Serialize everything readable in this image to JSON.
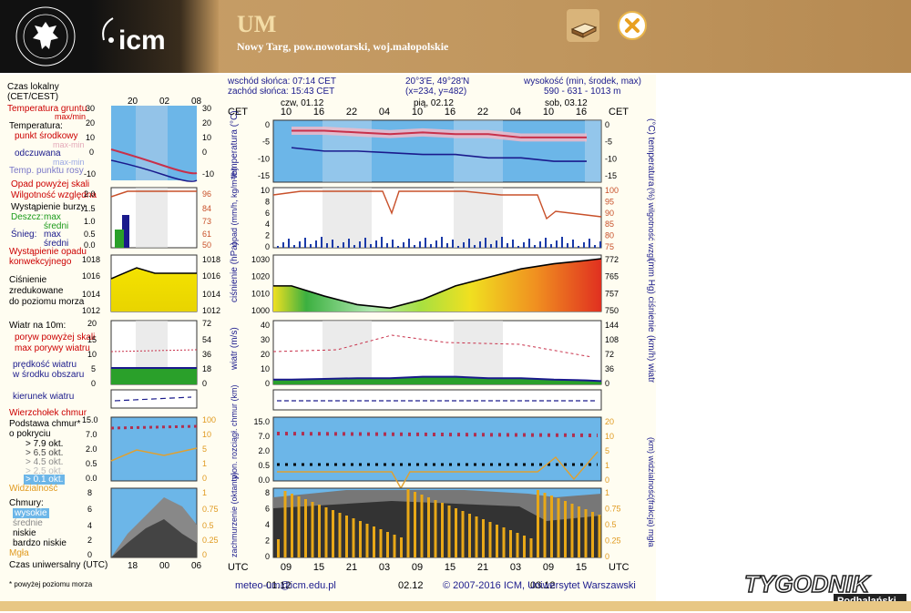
{
  "header": {
    "title": "UM",
    "location": "Nowy Targ, pow.nowotarski, woj.małopolskie",
    "uw_logo_text": "UNIWERSYTET WARSZAWSKI",
    "icm_logo_text": "icm",
    "save_icon": "save-icon",
    "close_icon": "close-icon"
  },
  "info": {
    "sunrise": "wschód słońca: 07:14 CET",
    "sunset": "zachód słońca: 15:43 CET",
    "coords": "20°3'E, 49°28'N",
    "grid": "(x=234, y=482)",
    "elevation_label": "wysokość (min, środek, max)",
    "elevation_values": "590 - 631 - 1013 m"
  },
  "legend": {
    "local_time": "Czas lokalny",
    "local_time_2": "(CET/CEST)",
    "soil_temp": "Temperatura gruntu",
    "soil_temp_2": "max/min",
    "temperature": "Temperatura:",
    "mid_point": "punkt środkowy",
    "max_min": "max-min",
    "perceived": "odczuwana",
    "max_min_2": "max-min",
    "dew_point": "Temp. punktu rosy",
    "precip_above": "Opad powyżej skali",
    "humidity": "Wilgotność względna",
    "storm": "Wystąpienie burzy",
    "rain": "Deszcz:",
    "rain_max": "max",
    "rain_avg": "średni",
    "snow": "Śnieg:",
    "snow_max": "max",
    "snow_avg": "średni",
    "convective": "Wystąpienie opadu",
    "convective_2": "konwekcyjnego",
    "pressure": "Ciśnienie",
    "pressure_2": "zredukowane",
    "pressure_3": "do poziomu morza",
    "wind_at": "Wiatr na 10m:",
    "gust_above": "poryw powyżej skali",
    "max_gust": "max porywy wiatru",
    "wind_speed": "prędkość wiatru",
    "wind_speed_2": "w środku obszaru",
    "wind_dir": "kierunek wiatru",
    "cloud_top": "Wierzchołek chmur",
    "cloud_base": "Podstawa chmur*",
    "cloud_base_2": "o pokryciu",
    "okt_79": "> 7.9 okt.",
    "okt_65": "> 6.5 okt.",
    "okt_45": "> 4.5 okt.",
    "okt_25": "> 2.5 okt.",
    "okt_01": "> 0.1 okt.",
    "visibility": "Widzialność",
    "clouds": "Chmury:",
    "high": "wysokie",
    "mid": "średnie",
    "low": "niskie",
    "very_low": "bardzo niskie",
    "fog": "Mgła",
    "utc_time": "Czas uniwersalny (UTC)",
    "footnote": "* powyżej poziomu morza"
  },
  "small_axes": {
    "hours_top": [
      "20",
      "02",
      "08"
    ],
    "hours_bottom": [
      "18",
      "00",
      "06"
    ],
    "temp_left": [
      "30",
      "20",
      "10",
      "0",
      "-10"
    ],
    "temp_right": [
      "30",
      "20",
      "10",
      "0",
      "-10"
    ],
    "precip_left": [
      "2.0",
      "1.5",
      "1.0",
      "0.5",
      "0.0"
    ],
    "precip_right": [
      "96",
      "84",
      "73",
      "61",
      "50"
    ],
    "press_left": [
      "1018",
      "1016",
      "1014",
      "1012"
    ],
    "press_right": [
      "1018",
      "1016",
      "1014",
      "1012"
    ],
    "wind_left": [
      "20",
      "15",
      "10",
      "5",
      "0"
    ],
    "wind_right": [
      "72",
      "54",
      "36",
      "18",
      "0"
    ],
    "cloudb_left": [
      "15.0",
      "7.0",
      "2.0",
      "0.5",
      "0.0"
    ],
    "cloudb_right": [
      "100",
      "10",
      "5",
      "1",
      "0"
    ],
    "cloud_left": [
      "8",
      "6",
      "4",
      "2",
      "0"
    ],
    "cloud_right": [
      "1",
      "0.75",
      "0.5",
      "0.25",
      "0"
    ]
  },
  "main_axes": {
    "cet": "CET",
    "utc": "UTC",
    "days_top": [
      "czw, 01.12",
      "pią, 02.12",
      "sob, 03.12"
    ],
    "hours_top": [
      "10",
      "16",
      "22",
      "04",
      "10",
      "16",
      "22",
      "04",
      "10",
      "16"
    ],
    "days_bottom": [
      "01.12",
      "02.12",
      "03.12"
    ],
    "hours_bottom": [
      "09",
      "15",
      "21",
      "03",
      "09",
      "15",
      "21",
      "03",
      "09",
      "15"
    ],
    "temp_left": [
      "0",
      "-5",
      "-10",
      "-15"
    ],
    "temp_right": [
      "0",
      "-5",
      "-10",
      "-15"
    ],
    "temp_label_l": "temperatura (°C)",
    "temp_label_r": "(°C) temperatura",
    "precip_left": [
      "10",
      "8",
      "6",
      "4",
      "2",
      "0"
    ],
    "precip_right": [
      "100",
      "95",
      "90",
      "85",
      "80",
      "75"
    ],
    "precip_label_l": "opad (mm/h, kg/m²/h)",
    "precip_label_r": "(%) wilgotność wzgl.",
    "press_left": [
      "1030",
      "1020",
      "1010",
      "1000"
    ],
    "press_right": [
      "772",
      "765",
      "757",
      "750"
    ],
    "press_label_l": "ciśnienie (hPa)",
    "press_label_r": "(mm Hg) ciśnienie",
    "wind_left": [
      "40",
      "30",
      "20",
      "10",
      "0"
    ],
    "wind_right": [
      "144",
      "108",
      "72",
      "36",
      "0"
    ],
    "wind_label_l": "wiatr (m/s)",
    "wind_label_r": "(km/h) wiatr",
    "cloudb_left": [
      "15.0",
      "7.0",
      "2.0",
      "0.5",
      "0.0"
    ],
    "cloudb_right": [
      "20",
      "10",
      "5",
      "1",
      "0"
    ],
    "cloudb_label_l": "pion. rozciągł. chmur (km)",
    "cloudb_label_r": "(km) widzialność",
    "cloud_left": [
      "8",
      "6",
      "4",
      "2",
      "0"
    ],
    "cloud_right": [
      "1",
      "0.75",
      "0.5",
      "0.25",
      "0"
    ],
    "cloud_label_l": "zachmurzenie (oktanty)",
    "cloud_label_r": "(frakcja) mgła"
  },
  "footer": {
    "email": "meteo-um@icm.edu.pl",
    "copyright": "© 2007-2016 ICM, Uniwersytet Warszawski",
    "watermark": "TYGODNIK",
    "watermark_2": "Podhalański"
  },
  "chart_data": {
    "type": "line",
    "title": "",
    "x_hours_utc": [
      9,
      15,
      21,
      3,
      9,
      15,
      21,
      3,
      9,
      15
    ],
    "series": [
      {
        "name": "punkt środkowy",
        "values": [
          -2,
          -2,
          -2.5,
          -3,
          -2.5,
          -3,
          -3,
          -4,
          -4,
          -4
        ]
      },
      {
        "name": "odczuwana",
        "values": [
          -7,
          -8,
          -8,
          -8.5,
          -9,
          -9,
          -10,
          -10,
          -11,
          -11
        ]
      }
    ],
    "pressure": [
      1014,
      1008,
      1003,
      1001,
      1006,
      1014,
      1019,
      1024,
      1027,
      1029
    ],
    "wind_speed": [
      2,
      2.5,
      3,
      3,
      4,
      4,
      3,
      3,
      2,
      1.5
    ],
    "ylim": [
      -15,
      0
    ]
  }
}
